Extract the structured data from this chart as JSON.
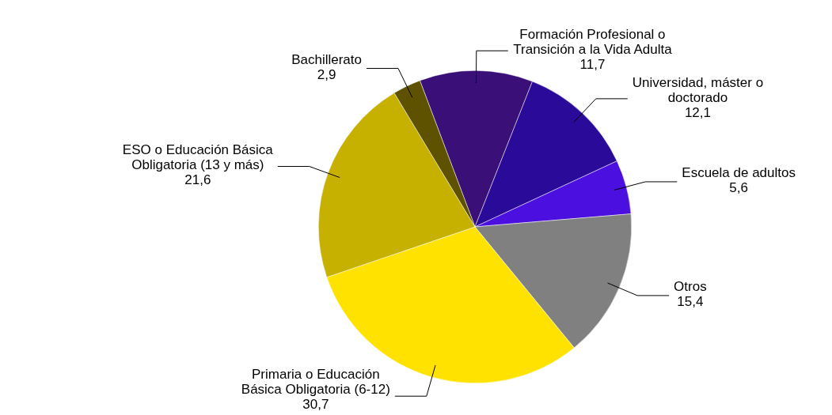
{
  "chart_data": {
    "type": "pie",
    "value_labels": [
      "11,7",
      "12,1",
      "5,6",
      "15,4",
      "30,7",
      "21,6",
      "2,9"
    ],
    "categories": [
      "Formación Profesional o Transición a la Vida Adulta",
      "Universidad, máster o doctorado",
      "Escuela de adultos",
      "Otros",
      "Primaria o Educación Básica Obligatoria (6-12)",
      "ESO o Educación Básica Obligatoria (13 y más)",
      "Bachillerato"
    ],
    "values": [
      11.7,
      12.1,
      5.6,
      15.4,
      30.7,
      21.6,
      2.9
    ],
    "colors": [
      "#3b0f78",
      "#2a0a98",
      "#4b0fe0",
      "#808080",
      "#ffe200",
      "#c6b100",
      "#5e5200"
    ]
  }
}
